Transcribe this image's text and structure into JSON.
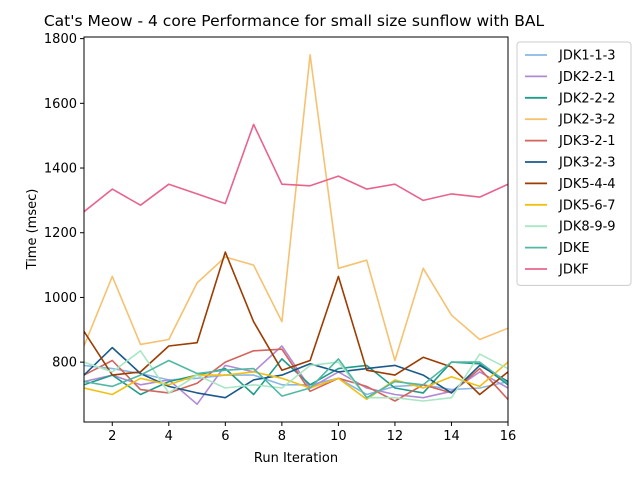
{
  "chart_data": {
    "type": "line",
    "title": "Cat's Meow - 4 core Performance for small size sunflow with BAL",
    "xlabel": "Run Iteration",
    "ylabel": "Time (msec)",
    "xlim": [
      1,
      16
    ],
    "ylim": [
      615,
      1805
    ],
    "xticks": [
      2,
      4,
      6,
      8,
      10,
      12,
      14,
      16
    ],
    "yticks": [
      800,
      1000,
      1200,
      1400,
      1600,
      1800
    ],
    "grid": false,
    "legend_position": "outside-right",
    "x": [
      1,
      2,
      3,
      4,
      5,
      6,
      7,
      8,
      9,
      10,
      11,
      12,
      13,
      14,
      15,
      16
    ],
    "series": [
      {
        "name": "JDK1-1-3",
        "color": "#8ab8e6",
        "values": [
          790,
          780,
          765,
          745,
          750,
          760,
          760,
          730,
          730,
          750,
          700,
          725,
          730,
          715,
          720,
          740
        ]
      },
      {
        "name": "JDK2-2-1",
        "color": "#b28ad4",
        "values": [
          740,
          760,
          730,
          745,
          670,
          790,
          770,
          850,
          720,
          770,
          720,
          700,
          690,
          710,
          770,
          720
        ]
      },
      {
        "name": "JDK2-2-2",
        "color": "#1f9c8c",
        "values": [
          730,
          760,
          700,
          740,
          760,
          780,
          700,
          810,
          730,
          780,
          790,
          720,
          705,
          800,
          795,
          730
        ]
      },
      {
        "name": "JDK2-3-2",
        "color": "#f5c272",
        "values": [
          850,
          1065,
          855,
          870,
          1045,
          1125,
          1100,
          925,
          1750,
          1090,
          1115,
          805,
          1090,
          945,
          870,
          905
        ]
      },
      {
        "name": "JDK3-2-1",
        "color": "#d4645c",
        "values": [
          760,
          805,
          715,
          705,
          735,
          800,
          835,
          840,
          710,
          750,
          725,
          680,
          730,
          705,
          780,
          685
        ]
      },
      {
        "name": "JDK3-2-3",
        "color": "#1a5a8a",
        "values": [
          760,
          845,
          765,
          725,
          705,
          690,
          745,
          760,
          795,
          770,
          780,
          790,
          760,
          705,
          790,
          740
        ]
      },
      {
        "name": "JDK5-4-4",
        "color": "#9c3c00",
        "values": [
          895,
          760,
          770,
          850,
          860,
          1140,
          925,
          775,
          805,
          1065,
          775,
          760,
          815,
          785,
          700,
          770
        ]
      },
      {
        "name": "JDK5-6-7",
        "color": "#f2c012",
        "values": [
          720,
          700,
          750,
          730,
          760,
          760,
          770,
          750,
          720,
          750,
          685,
          745,
          720,
          755,
          725,
          800
        ]
      },
      {
        "name": "JDK8-9-9",
        "color": "#a8e6c4",
        "values": [
          800,
          770,
          835,
          705,
          760,
          720,
          730,
          720,
          790,
          800,
          690,
          690,
          680,
          690,
          825,
          780
        ]
      },
      {
        "name": "JDKE",
        "color": "#52b8a4",
        "values": [
          740,
          725,
          760,
          805,
          765,
          775,
          780,
          695,
          720,
          810,
          690,
          740,
          730,
          800,
          800,
          735
        ]
      },
      {
        "name": "JDKF",
        "color": "#e8648c",
        "values": [
          1265,
          1335,
          1285,
          1350,
          1320,
          1290,
          1535,
          1350,
          1345,
          1375,
          1335,
          1350,
          1300,
          1320,
          1310,
          1350
        ]
      }
    ]
  }
}
